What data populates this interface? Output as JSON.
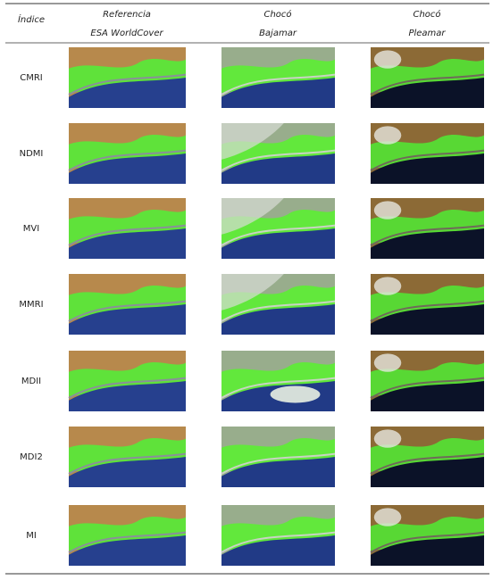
{
  "header": {
    "index_label": "Índice",
    "columns": [
      {
        "line1": "Referencia",
        "line2": "ESA WorldCover"
      },
      {
        "line1": "Chocó",
        "line2": "Bajamar"
      },
      {
        "line1": "Chocó",
        "line2": "Pleamar"
      }
    ]
  },
  "rows": [
    "CMRI",
    "NDMI",
    "MVI",
    "MMRI",
    "MDII",
    "MDI2",
    "MI"
  ]
}
